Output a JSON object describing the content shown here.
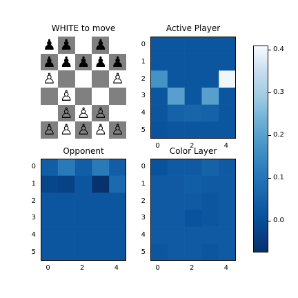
{
  "chart_data": [
    {
      "type": "board",
      "title": "WHITE to move",
      "rows": 6,
      "cols": 5,
      "light_color": "#ffffff",
      "dark_color": "#808080",
      "pawns": [
        {
          "row": 0,
          "col": 0,
          "color": "black",
          "glyph": "♟"
        },
        {
          "row": 0,
          "col": 1,
          "color": "black",
          "glyph": "♟"
        },
        {
          "row": 0,
          "col": 3,
          "color": "black",
          "glyph": "♟"
        },
        {
          "row": 1,
          "col": 0,
          "color": "black",
          "glyph": "♟"
        },
        {
          "row": 1,
          "col": 1,
          "color": "black",
          "glyph": "♟"
        },
        {
          "row": 1,
          "col": 2,
          "color": "black",
          "glyph": "♟"
        },
        {
          "row": 1,
          "col": 3,
          "color": "black",
          "glyph": "♟"
        },
        {
          "row": 1,
          "col": 4,
          "color": "black",
          "glyph": "♟"
        },
        {
          "row": 2,
          "col": 0,
          "color": "white",
          "glyph": "♙"
        },
        {
          "row": 2,
          "col": 4,
          "color": "white",
          "glyph": "♙"
        },
        {
          "row": 3,
          "col": 1,
          "color": "white",
          "glyph": "♙"
        },
        {
          "row": 4,
          "col": 1,
          "color": "white",
          "glyph": "♙"
        },
        {
          "row": 4,
          "col": 2,
          "color": "white",
          "glyph": "♙"
        },
        {
          "row": 4,
          "col": 3,
          "color": "white",
          "glyph": "♙"
        },
        {
          "row": 5,
          "col": 0,
          "color": "white",
          "glyph": "♙"
        },
        {
          "row": 5,
          "col": 1,
          "color": "white",
          "glyph": "♙"
        },
        {
          "row": 5,
          "col": 2,
          "color": "white",
          "glyph": "♙"
        },
        {
          "row": 5,
          "col": 3,
          "color": "white",
          "glyph": "♙"
        },
        {
          "row": 5,
          "col": 4,
          "color": "white",
          "glyph": "♙"
        }
      ]
    },
    {
      "type": "heatmap",
      "title": "Active Player",
      "x_ticks": [
        "0",
        "2",
        "4"
      ],
      "y_ticks": [
        "0",
        "1",
        "2",
        "3",
        "4",
        "5"
      ],
      "values": [
        [
          0.02,
          0.02,
          0.02,
          0.02,
          0.02
        ],
        [
          0.02,
          0.02,
          0.02,
          0.02,
          0.02
        ],
        [
          0.17,
          0.02,
          0.02,
          0.02,
          0.4
        ],
        [
          0.02,
          0.2,
          0.02,
          0.2,
          0.02
        ],
        [
          0.02,
          0.05,
          0.06,
          0.05,
          0.02
        ],
        [
          0.01,
          0.02,
          0.02,
          0.02,
          0.02
        ]
      ]
    },
    {
      "type": "heatmap",
      "title": "Opponent",
      "x_ticks": [
        "0",
        "2",
        "4"
      ],
      "y_ticks": [
        "0",
        "1",
        "2",
        "3",
        "4",
        "5"
      ],
      "values": [
        [
          0.04,
          0.11,
          0.04,
          0.11,
          0.04
        ],
        [
          -0.02,
          -0.03,
          0.02,
          -0.07,
          0.07
        ],
        [
          0.02,
          0.02,
          0.02,
          0.02,
          0.02
        ],
        [
          0.02,
          0.02,
          0.02,
          0.02,
          0.02
        ],
        [
          0.02,
          0.02,
          0.02,
          0.02,
          0.02
        ],
        [
          0.02,
          0.02,
          0.02,
          0.02,
          0.02
        ]
      ]
    },
    {
      "type": "heatmap",
      "title": "Color Layer",
      "x_ticks": [
        "0",
        "2",
        "4"
      ],
      "y_ticks": [
        "0",
        "1",
        "2",
        "3",
        "4",
        "5"
      ],
      "values": [
        [
          0.01,
          0.03,
          0.03,
          0.05,
          0.03
        ],
        [
          0.03,
          0.03,
          0.04,
          0.03,
          0.03
        ],
        [
          0.03,
          0.03,
          0.03,
          0.02,
          0.03
        ],
        [
          0.03,
          0.03,
          0.01,
          0.02,
          0.03
        ],
        [
          0.03,
          0.03,
          0.03,
          0.03,
          0.03
        ],
        [
          0.02,
          0.03,
          0.03,
          0.02,
          0.03
        ]
      ]
    }
  ],
  "colorbar": {
    "vmin": -0.075,
    "vmax": 0.41,
    "ticks": [
      {
        "value": 0.0,
        "label": "0.0"
      },
      {
        "value": 0.1,
        "label": "0.1"
      },
      {
        "value": 0.2,
        "label": "0.2"
      },
      {
        "value": 0.3,
        "label": "0.3"
      },
      {
        "value": 0.4,
        "label": "0.4"
      }
    ]
  }
}
